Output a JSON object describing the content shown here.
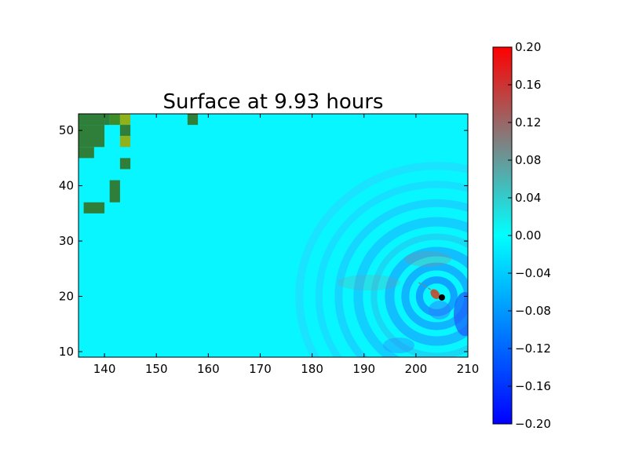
{
  "chart_data": {
    "type": "heatmap",
    "title": "Surface at 9.93 hours",
    "xlabel": "",
    "ylabel": "",
    "xlim": [
      135,
      210
    ],
    "ylim": [
      9,
      53
    ],
    "x_ticks": [
      "140",
      "150",
      "160",
      "170",
      "180",
      "190",
      "200",
      "210"
    ],
    "y_ticks": [
      "10",
      "20",
      "30",
      "40",
      "50"
    ],
    "grid": false,
    "background_value": 0.0,
    "colorbar": {
      "vmin": -0.2,
      "vmax": 0.2,
      "ticks": [
        "0.20",
        "0.16",
        "0.12",
        "0.08",
        "0.04",
        "0.00",
        "−0.04",
        "−0.08",
        "−0.12",
        "−0.16",
        "−0.20"
      ],
      "colors": {
        "min": "#0000ff",
        "mid": "#00ffff",
        "upper": "#808080",
        "max": "#ff0000"
      }
    },
    "land_cells": [
      {
        "x0": 135,
        "x1": 140,
        "y0": 51,
        "y1": 53,
        "color": "#2f7f3a"
      },
      {
        "x0": 140,
        "x1": 141,
        "y0": 51,
        "y1": 53,
        "color": "#2f7f3a"
      },
      {
        "x0": 141,
        "x1": 143,
        "y0": 51,
        "y1": 53,
        "color": "#3f8d2a"
      },
      {
        "x0": 143,
        "x1": 145,
        "y0": 51,
        "y1": 53,
        "color": "#8fb21c"
      },
      {
        "x0": 135,
        "x1": 140,
        "y0": 47,
        "y1": 51,
        "color": "#2f7f3a"
      },
      {
        "x0": 143,
        "x1": 145,
        "y0": 49,
        "y1": 51,
        "color": "#2f7f3a"
      },
      {
        "x0": 143,
        "x1": 145,
        "y0": 47,
        "y1": 49,
        "color": "#8fb21c"
      },
      {
        "x0": 135,
        "x1": 138,
        "y0": 45,
        "y1": 47,
        "color": "#2f7f3a"
      },
      {
        "x0": 143,
        "x1": 145,
        "y0": 43,
        "y1": 45,
        "color": "#2f7f3a"
      },
      {
        "x0": 141,
        "x1": 143,
        "y0": 37,
        "y1": 41,
        "color": "#2f7f3a"
      },
      {
        "x0": 136,
        "x1": 140,
        "y0": 35,
        "y1": 37,
        "color": "#2f7f3a"
      },
      {
        "x0": 156,
        "x1": 158,
        "y0": 51,
        "y1": 53,
        "color": "#2f7f3a"
      }
    ],
    "ripple_center": {
      "x": 204,
      "y": 20
    },
    "storm_track": [
      {
        "x": 200.5,
        "y": 22.5
      },
      {
        "x": 202.0,
        "y": 21.7
      },
      {
        "x": 203.2,
        "y": 21.0
      },
      {
        "x": 204.2,
        "y": 20.3
      }
    ],
    "storm_marker": {
      "x": 205.0,
      "y": 19.8,
      "color": "#000000"
    },
    "surge_patch": {
      "x": 203.7,
      "y": 20.4,
      "value": 0.18
    }
  }
}
